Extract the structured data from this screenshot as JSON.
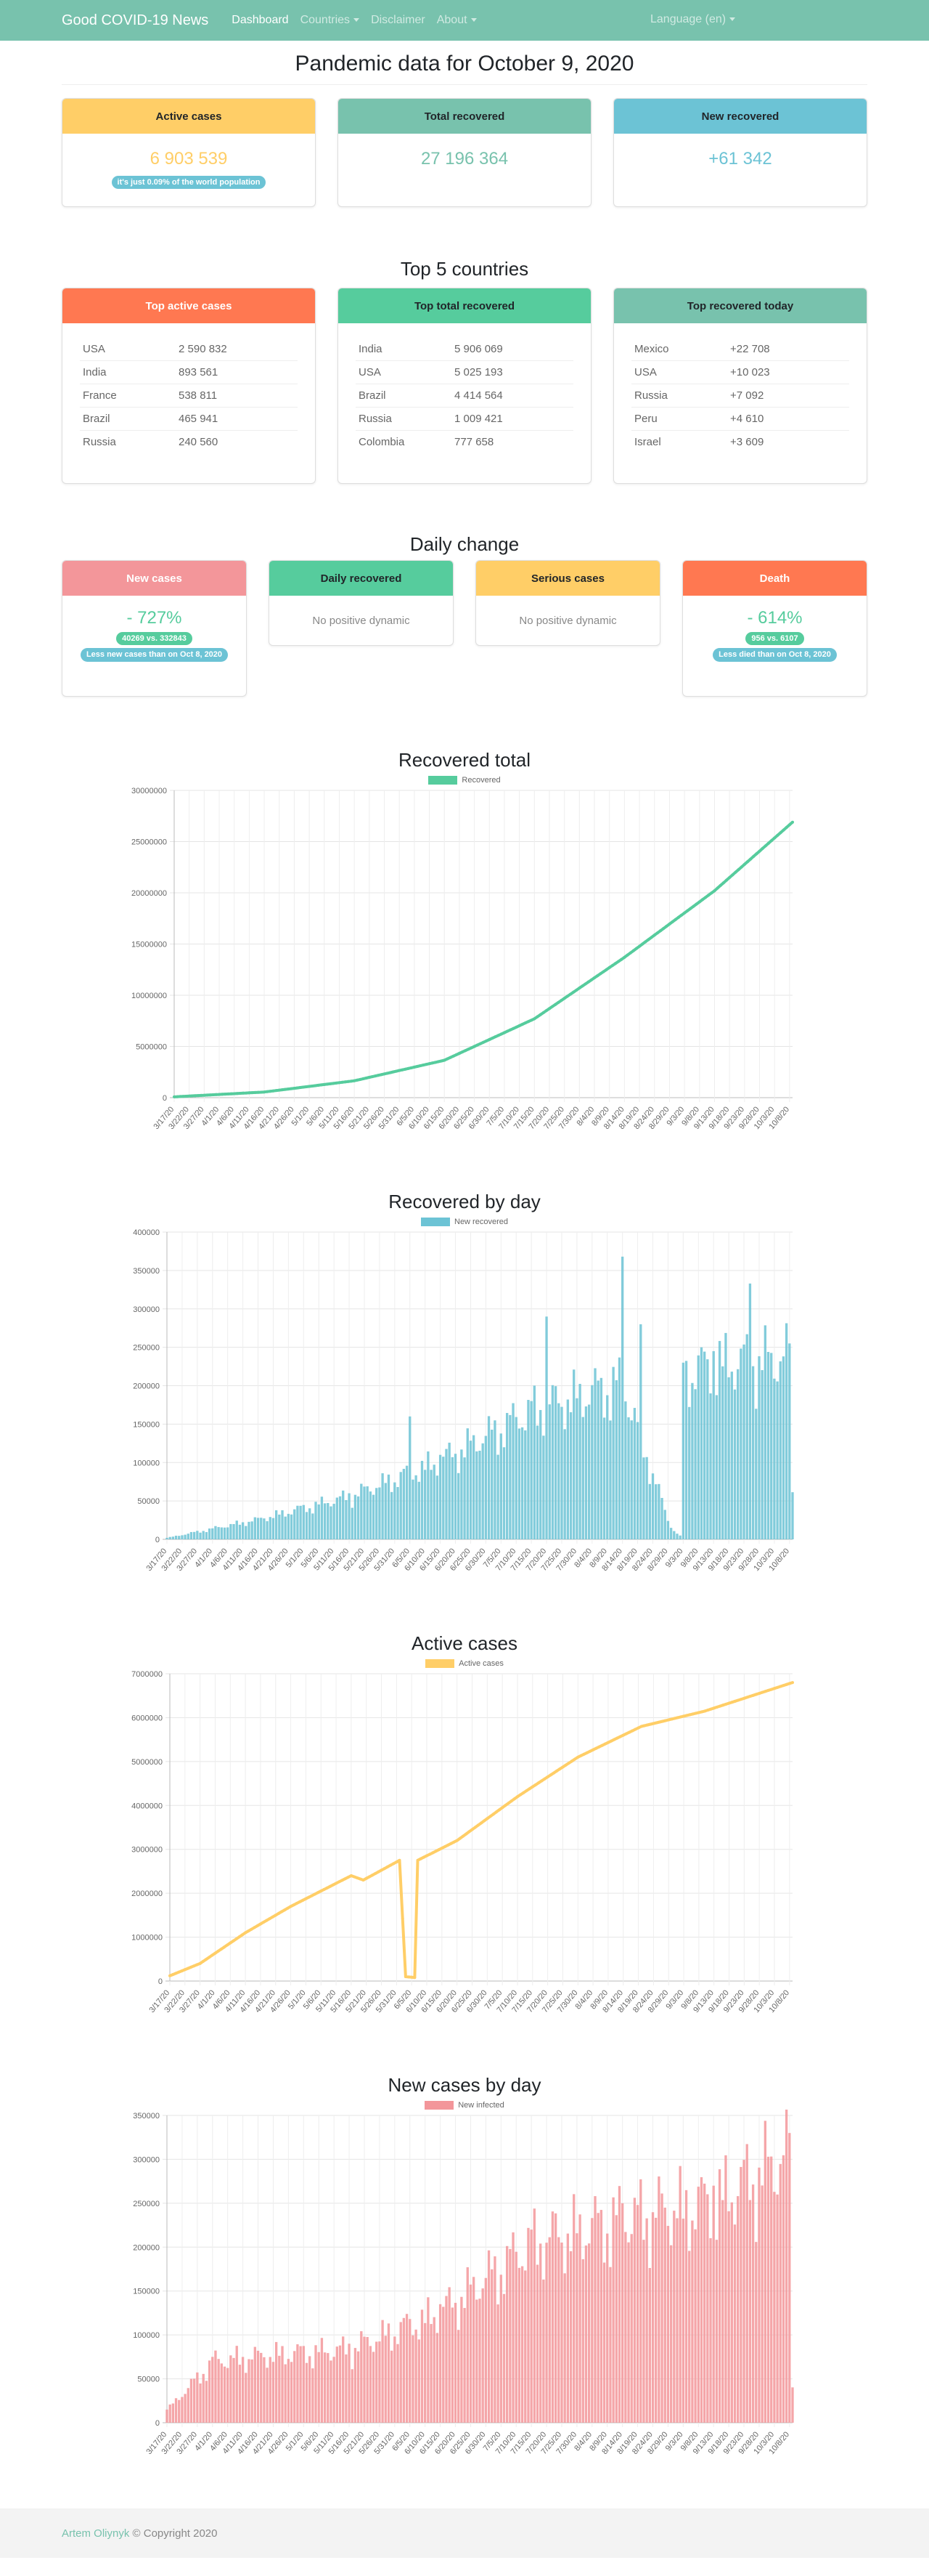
{
  "navbar": {
    "brand": "Good COVID-19 News",
    "links": [
      "Dashboard",
      "Countries",
      "Disclaimer",
      "About"
    ],
    "language": "Language (en)"
  },
  "page": {
    "title": "Pandemic data for October 9, 2020"
  },
  "summary": {
    "active": {
      "title": "Active cases",
      "value": "6 903 539",
      "badge": "it's just 0.09% of the world population"
    },
    "total_recovered": {
      "title": "Total recovered",
      "value": "27 196 364"
    },
    "new_recovered": {
      "title": "New recovered",
      "value": "+61 342"
    }
  },
  "top5": {
    "title": "Top 5 countries",
    "active": {
      "title": "Top active cases",
      "rows": [
        [
          "USA",
          "2 590 832"
        ],
        [
          "India",
          "893 561"
        ],
        [
          "France",
          "538 811"
        ],
        [
          "Brazil",
          "465 941"
        ],
        [
          "Russia",
          "240 560"
        ]
      ]
    },
    "recovered": {
      "title": "Top total recovered",
      "rows": [
        [
          "India",
          "5 906 069"
        ],
        [
          "USA",
          "5 025 193"
        ],
        [
          "Brazil",
          "4 414 564"
        ],
        [
          "Russia",
          "1 009 421"
        ],
        [
          "Colombia",
          "777 658"
        ]
      ]
    },
    "today": {
      "title": "Top recovered today",
      "rows": [
        [
          "Mexico",
          "+22 708"
        ],
        [
          "USA",
          "+10 023"
        ],
        [
          "Russia",
          "+7 092"
        ],
        [
          "Peru",
          "+4 610"
        ],
        [
          "Israel",
          "+3 609"
        ]
      ]
    }
  },
  "daily": {
    "title": "Daily change",
    "new_cases": {
      "title": "New cases",
      "value": "- 727%",
      "badge1": "40269 vs. 332843",
      "badge2": "Less new cases than on Oct 8, 2020"
    },
    "daily_recovered": {
      "title": "Daily recovered",
      "text": "No positive dynamic"
    },
    "serious": {
      "title": "Serious cases",
      "text": "No positive dynamic"
    },
    "death": {
      "title": "Death",
      "value": "- 614%",
      "badge1": "956 vs. 6107",
      "badge2": "Less died than on Oct 8, 2020"
    }
  },
  "colors": {
    "primary": "#78c2ad",
    "warning": "#ffce67",
    "info": "#6cc3d5",
    "danger": "#ff7851",
    "success": "#56cc9d",
    "pink": "#f3969a",
    "dark_text": "#343a40"
  },
  "icons": [
    "caret-down-icon"
  ],
  "charts": [
    {
      "title": "Recovered total",
      "legend": "Recovered"
    },
    {
      "title": "Recovered by day",
      "legend": "New recovered"
    },
    {
      "title": "Active cases",
      "legend": "Active cases"
    },
    {
      "title": "New cases by day",
      "legend": "New infected"
    }
  ],
  "chart_data": [
    {
      "type": "line",
      "legend": "Recovered",
      "color": "#56cc9d",
      "ylim": [
        0,
        30000000
      ],
      "yticks": [
        0,
        5000000,
        10000000,
        15000000,
        20000000,
        25000000,
        30000000
      ],
      "start_date": "3/17/20",
      "end_date": "10/9/20",
      "x_tick_labels": [
        "3/17/20",
        "3/22/20",
        "3/27/20",
        "4/1/20",
        "4/6/20",
        "4/11/20",
        "4/16/20",
        "4/21/20",
        "4/26/20",
        "5/1/20",
        "5/6/20",
        "5/11/20",
        "5/16/20",
        "5/21/20",
        "5/26/20",
        "5/31/20",
        "6/5/20",
        "6/10/20",
        "6/15/20",
        "6/20/20",
        "6/25/20",
        "6/30/20",
        "7/5/20",
        "7/10/20",
        "7/15/20",
        "7/20/20",
        "7/25/20",
        "7/30/20",
        "8/4/20",
        "8/9/20",
        "8/14/20",
        "8/19/20",
        "8/24/20",
        "8/29/20",
        "9/3/20",
        "9/8/20",
        "9/13/20",
        "9/18/20",
        "9/23/20",
        "9/28/20",
        "10/3/20",
        "10/8/20"
      ],
      "keypoints": [
        [
          "3/17/20",
          80000
        ],
        [
          "4/16/20",
          550000
        ],
        [
          "5/16/20",
          1650000
        ],
        [
          "6/15/20",
          3650000
        ],
        [
          "7/15/20",
          7700000
        ],
        [
          "8/14/20",
          13700000
        ],
        [
          "9/13/20",
          20200000
        ],
        [
          "10/9/20",
          26900000
        ]
      ]
    },
    {
      "type": "bar",
      "legend": "New recovered",
      "color": "#6cc3d5",
      "ylim": [
        0,
        400000
      ],
      "yticks": [
        0,
        50000,
        100000,
        150000,
        200000,
        250000,
        300000,
        350000,
        400000
      ],
      "start_date": "3/17/20",
      "end_date": "10/9/20",
      "x_tick_labels": [
        "3/17/20",
        "3/22/20",
        "3/27/20",
        "4/1/20",
        "4/6/20",
        "4/11/20",
        "4/16/20",
        "4/21/20",
        "4/26/20",
        "5/1/20",
        "5/6/20",
        "5/11/20",
        "5/16/20",
        "5/21/20",
        "5/26/20",
        "5/31/20",
        "6/5/20",
        "6/10/20",
        "6/15/20",
        "6/20/20",
        "6/25/20",
        "6/30/20",
        "7/5/20",
        "7/10/20",
        "7/15/20",
        "7/20/20",
        "7/25/20",
        "7/30/20",
        "8/4/20",
        "8/9/20",
        "8/14/20",
        "8/19/20",
        "8/24/20",
        "8/29/20",
        "9/3/20",
        "9/8/20",
        "9/13/20",
        "9/18/20",
        "9/23/20",
        "9/28/20",
        "10/3/20",
        "10/8/20"
      ],
      "keypoints": [
        [
          "3/17/20",
          2000
        ],
        [
          "4/16/20",
          28000
        ],
        [
          "5/16/20",
          60000
        ],
        [
          "6/15/20",
          110000
        ],
        [
          "7/15/20",
          180000
        ],
        [
          "8/14/20",
          220000
        ],
        [
          "8/30/20",
          15000
        ],
        [
          "9/2/20",
          5000
        ],
        [
          "9/3/20",
          230000
        ],
        [
          "9/13/20",
          245000
        ],
        [
          "10/8/20",
          255000
        ],
        [
          "10/9/20",
          61342
        ]
      ],
      "peaks": [
        [
          "6/5/20",
          160000
        ],
        [
          "7/20/20",
          290000
        ],
        [
          "8/14/20",
          368000
        ],
        [
          "9/25/20",
          333000
        ],
        [
          "8/20/20",
          280000
        ]
      ]
    },
    {
      "type": "line",
      "legend": "Active cases",
      "color": "#ffce67",
      "ylim": [
        0,
        7000000
      ],
      "yticks": [
        0,
        1000000,
        2000000,
        3000000,
        4000000,
        5000000,
        6000000,
        7000000
      ],
      "start_date": "3/17/20",
      "end_date": "10/9/20",
      "x_tick_labels": [
        "3/17/20",
        "3/22/20",
        "3/27/20",
        "4/1/20",
        "4/6/20",
        "4/11/20",
        "4/16/20",
        "4/21/20",
        "4/26/20",
        "5/1/20",
        "5/6/20",
        "5/11/20",
        "5/16/20",
        "5/21/20",
        "5/26/20",
        "5/31/20",
        "6/5/20",
        "6/10/20",
        "6/15/20",
        "6/20/20",
        "6/25/20",
        "6/30/20",
        "7/5/20",
        "7/10/20",
        "7/15/20",
        "7/20/20",
        "7/25/20",
        "7/30/20",
        "8/4/20",
        "8/9/20",
        "8/14/20",
        "8/19/20",
        "8/24/20",
        "8/29/20",
        "9/3/20",
        "9/8/20",
        "9/13/20",
        "9/18/20",
        "9/23/20",
        "9/28/20",
        "10/3/20",
        "10/8/20"
      ],
      "keypoints": [
        [
          "3/17/20",
          120000
        ],
        [
          "3/27/20",
          400000
        ],
        [
          "4/11/20",
          1100000
        ],
        [
          "4/26/20",
          1700000
        ],
        [
          "5/16/20",
          2400000
        ],
        [
          "5/20/20",
          2300000
        ],
        [
          "6/1/20",
          2750000
        ],
        [
          "6/3/20",
          100000
        ],
        [
          "6/6/20",
          80000
        ],
        [
          "6/7/20",
          2750000
        ],
        [
          "6/20/20",
          3200000
        ],
        [
          "7/10/20",
          4200000
        ],
        [
          "7/30/20",
          5100000
        ],
        [
          "8/20/20",
          5800000
        ],
        [
          "9/10/20",
          6150000
        ],
        [
          "10/9/20",
          6800000
        ]
      ]
    },
    {
      "type": "bar",
      "legend": "New infected",
      "color": "#f3969a",
      "ylim": [
        0,
        350000
      ],
      "yticks": [
        0,
        50000,
        100000,
        150000,
        200000,
        250000,
        300000,
        350000
      ],
      "start_date": "3/17/20",
      "end_date": "10/9/20",
      "x_tick_labels": [
        "3/17/20",
        "3/22/20",
        "3/27/20",
        "4/1/20",
        "4/6/20",
        "4/11/20",
        "4/16/20",
        "4/21/20",
        "4/26/20",
        "5/1/20",
        "5/6/20",
        "5/11/20",
        "5/16/20",
        "5/21/20",
        "5/26/20",
        "5/31/20",
        "6/5/20",
        "6/10/20",
        "6/15/20",
        "6/20/20",
        "6/25/20",
        "6/30/20",
        "7/5/20",
        "7/10/20",
        "7/15/20",
        "7/20/20",
        "7/25/20",
        "7/30/20",
        "8/4/20",
        "8/9/20",
        "8/14/20",
        "8/19/20",
        "8/24/20",
        "8/29/20",
        "9/3/20",
        "9/8/20",
        "9/13/20",
        "9/18/20",
        "9/23/20",
        "9/28/20",
        "10/3/20",
        "10/8/20"
      ],
      "keypoints": [
        [
          "3/17/20",
          15000
        ],
        [
          "4/1/20",
          75000
        ],
        [
          "4/16/20",
          82000
        ],
        [
          "5/16/20",
          90000
        ],
        [
          "6/15/20",
          135000
        ],
        [
          "7/15/20",
          220000
        ],
        [
          "8/14/20",
          250000
        ],
        [
          "9/13/20",
          270000
        ],
        [
          "10/8/20",
          330000
        ],
        [
          "10/9/20",
          40269
        ]
      ]
    }
  ],
  "footer": {
    "author": "Artem Oliynyk",
    "copyright": "© Copyright 2020"
  }
}
